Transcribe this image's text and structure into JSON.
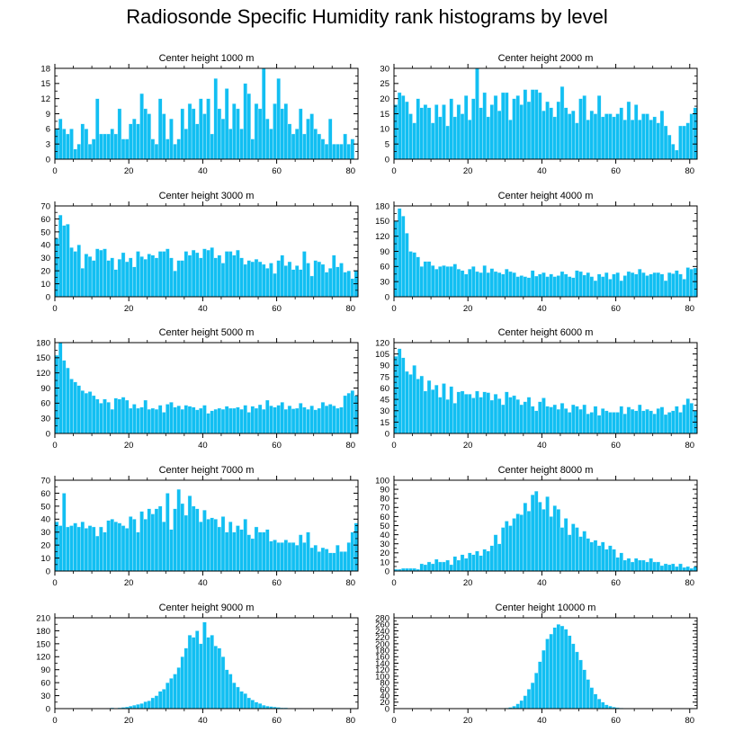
{
  "title": "Radiosonde Specific Humidity rank histograms by level",
  "colors": {
    "bar": "#12bff2",
    "bar_edge": "#e6f8ff",
    "axis": "#000000"
  },
  "chart_data": [
    {
      "type": "bar",
      "title": "Center height 1000 m",
      "xlim": [
        0,
        82
      ],
      "xticks": [
        0,
        20,
        40,
        60,
        80
      ],
      "ylim": [
        0,
        18
      ],
      "yticks": [
        0,
        3,
        6,
        9,
        12,
        15,
        18
      ],
      "xlabel": "",
      "ylabel": "",
      "values": [
        6,
        8,
        6,
        5,
        6,
        2,
        3,
        7,
        6,
        3,
        4,
        12,
        5,
        5,
        5,
        6,
        5,
        10,
        4,
        4,
        7,
        8,
        7,
        13,
        10,
        9,
        4,
        3,
        12,
        9,
        4,
        8,
        3,
        4,
        10,
        6,
        11,
        10,
        7,
        12,
        9,
        12,
        5,
        16,
        10,
        8,
        14,
        6,
        11,
        10,
        6,
        15,
        13,
        4,
        11,
        10,
        18,
        8,
        6,
        11,
        16,
        10,
        11,
        7,
        5,
        6,
        10,
        5,
        8,
        9,
        6,
        5,
        4,
        3,
        8,
        3,
        3,
        3,
        5,
        3,
        4
      ]
    },
    {
      "type": "bar",
      "title": "Center height 2000 m",
      "xlim": [
        0,
        82
      ],
      "xticks": [
        0,
        20,
        40,
        60,
        80
      ],
      "ylim": [
        0,
        30
      ],
      "yticks": [
        0,
        5,
        10,
        15,
        20,
        25,
        30
      ],
      "xlabel": "",
      "ylabel": "",
      "values": [
        18,
        22,
        21,
        19,
        15,
        12,
        20,
        17,
        18,
        17,
        12,
        18,
        14,
        18,
        11,
        20,
        14,
        18,
        15,
        21,
        13,
        20,
        30,
        17,
        22,
        14,
        18,
        21,
        16,
        22,
        22,
        13,
        20,
        21,
        18,
        23,
        19,
        23,
        23,
        22,
        16,
        19,
        17,
        14,
        19,
        24,
        17,
        15,
        16,
        12,
        20,
        21,
        13,
        16,
        15,
        21,
        14,
        15,
        15,
        14,
        15,
        17,
        13,
        19,
        13,
        18,
        13,
        15,
        15,
        13,
        14,
        12,
        16,
        11,
        8,
        5,
        3,
        11,
        11,
        12,
        15,
        17,
        17
      ]
    },
    {
      "type": "bar",
      "title": "Center height 3000 m",
      "xlim": [
        0,
        82
      ],
      "xticks": [
        0,
        20,
        40,
        60,
        80
      ],
      "ylim": [
        0,
        70
      ],
      "yticks": [
        0,
        10,
        20,
        30,
        40,
        50,
        60,
        70
      ],
      "xlabel": "",
      "ylabel": "",
      "values": [
        45,
        63,
        55,
        56,
        38,
        35,
        40,
        22,
        33,
        31,
        28,
        37,
        36,
        37,
        28,
        30,
        21,
        29,
        34,
        27,
        30,
        23,
        35,
        31,
        29,
        33,
        32,
        30,
        35,
        35,
        37,
        30,
        20,
        28,
        28,
        35,
        32,
        36,
        34,
        30,
        37,
        36,
        38,
        30,
        32,
        26,
        35,
        35,
        32,
        36,
        30,
        25,
        28,
        27,
        29,
        27,
        25,
        22,
        26,
        18,
        28,
        32,
        24,
        27,
        21,
        24,
        21,
        35,
        26,
        16,
        28,
        27,
        25,
        19,
        22,
        32,
        23,
        26,
        19,
        20,
        14,
        20
      ]
    },
    {
      "type": "bar",
      "title": "Center height 4000 m",
      "xlim": [
        0,
        82
      ],
      "xticks": [
        0,
        20,
        40,
        60,
        80
      ],
      "ylim": [
        0,
        180
      ],
      "yticks": [
        0,
        30,
        60,
        90,
        120,
        150,
        180
      ],
      "xlabel": "",
      "ylabel": "",
      "values": [
        150,
        175,
        160,
        126,
        90,
        88,
        79,
        60,
        70,
        70,
        62,
        55,
        60,
        62,
        60,
        60,
        65,
        55,
        52,
        45,
        55,
        60,
        50,
        48,
        62,
        48,
        56,
        50,
        48,
        45,
        55,
        50,
        48,
        40,
        42,
        40,
        38,
        52,
        41,
        45,
        48,
        40,
        45,
        40,
        42,
        50,
        45,
        40,
        38,
        52,
        50,
        43,
        48,
        40,
        32,
        45,
        40,
        48,
        35,
        45,
        48,
        32,
        42,
        50,
        48,
        45,
        55,
        48,
        42,
        45,
        48,
        48,
        45,
        32,
        48,
        46,
        52,
        45,
        35,
        58,
        55,
        57
      ]
    },
    {
      "type": "bar",
      "title": "Center height 5000 m",
      "xlim": [
        0,
        82
      ],
      "xticks": [
        0,
        20,
        40,
        60,
        80
      ],
      "ylim": [
        0,
        180
      ],
      "yticks": [
        0,
        30,
        60,
        90,
        120,
        150,
        180
      ],
      "xlabel": "",
      "ylabel": "",
      "values": [
        155,
        180,
        145,
        130,
        108,
        102,
        95,
        85,
        80,
        83,
        75,
        68,
        60,
        68,
        62,
        48,
        70,
        68,
        72,
        66,
        50,
        58,
        50,
        52,
        66,
        48,
        50,
        48,
        56,
        42,
        58,
        62,
        52,
        55,
        48,
        56,
        54,
        52,
        47,
        50,
        56,
        40,
        45,
        48,
        50,
        48,
        54,
        50,
        50,
        52,
        48,
        56,
        42,
        54,
        50,
        57,
        48,
        66,
        55,
        52,
        56,
        62,
        48,
        55,
        49,
        50,
        60,
        52,
        48,
        55,
        47,
        50,
        62,
        55,
        58,
        55,
        50,
        52,
        75,
        80,
        85,
        75
      ]
    },
    {
      "type": "bar",
      "title": "Center height 6000 m",
      "xlim": [
        0,
        82
      ],
      "xticks": [
        0,
        20,
        40,
        60,
        80
      ],
      "ylim": [
        0,
        120
      ],
      "yticks": [
        0,
        15,
        30,
        45,
        60,
        75,
        90,
        105,
        120
      ],
      "xlabel": "",
      "ylabel": "",
      "values": [
        102,
        112,
        100,
        82,
        78,
        90,
        72,
        76,
        56,
        70,
        58,
        64,
        48,
        66,
        45,
        62,
        40,
        55,
        56,
        52,
        52,
        47,
        56,
        48,
        55,
        54,
        44,
        52,
        46,
        38,
        55,
        48,
        50,
        45,
        38,
        42,
        48,
        36,
        30,
        42,
        47,
        36,
        35,
        38,
        32,
        40,
        33,
        28,
        38,
        36,
        32,
        38,
        26,
        28,
        36,
        24,
        33,
        30,
        28,
        28,
        28,
        36,
        26,
        35,
        32,
        30,
        38,
        30,
        32,
        30,
        26,
        33,
        35,
        25,
        28,
        30,
        36,
        28,
        38,
        46,
        40,
        30
      ]
    },
    {
      "type": "bar",
      "title": "Center height 7000 m",
      "xlim": [
        0,
        82
      ],
      "xticks": [
        0,
        20,
        40,
        60,
        80
      ],
      "ylim": [
        0,
        70
      ],
      "yticks": [
        0,
        10,
        20,
        30,
        40,
        50,
        60,
        70
      ],
      "xlabel": "",
      "ylabel": "",
      "values": [
        38,
        35,
        60,
        34,
        35,
        37,
        34,
        38,
        33,
        35,
        34,
        27,
        34,
        30,
        39,
        40,
        38,
        37,
        35,
        33,
        42,
        40,
        30,
        46,
        40,
        48,
        44,
        48,
        50,
        38,
        60,
        32,
        48,
        63,
        52,
        43,
        58,
        50,
        48,
        38,
        47,
        40,
        41,
        40,
        34,
        42,
        30,
        38,
        30,
        35,
        32,
        40,
        28,
        25,
        34,
        30,
        30,
        32,
        23,
        24,
        22,
        22,
        24,
        22,
        22,
        20,
        28,
        22,
        30,
        18,
        20,
        15,
        18,
        17,
        14,
        14,
        20,
        15,
        15,
        22,
        30,
        37
      ]
    },
    {
      "type": "bar",
      "title": "Center height 8000 m",
      "xlim": [
        0,
        82
      ],
      "xticks": [
        0,
        20,
        40,
        60,
        80
      ],
      "ylim": [
        0,
        100
      ],
      "yticks": [
        0,
        10,
        20,
        30,
        40,
        50,
        60,
        70,
        80,
        90,
        100
      ],
      "xlabel": "",
      "ylabel": "",
      "values": [
        2,
        2,
        3,
        3,
        3,
        3,
        2,
        8,
        7,
        10,
        8,
        13,
        10,
        10,
        12,
        7,
        16,
        12,
        18,
        14,
        20,
        18,
        22,
        17,
        24,
        22,
        28,
        40,
        30,
        48,
        55,
        50,
        58,
        63,
        62,
        75,
        66,
        84,
        88,
        76,
        68,
        82,
        60,
        72,
        68,
        48,
        58,
        40,
        52,
        48,
        38,
        44,
        36,
        32,
        34,
        28,
        32,
        24,
        28,
        24,
        15,
        20,
        12,
        14,
        10,
        14,
        12,
        12,
        10,
        14,
        10,
        10,
        6,
        8,
        7,
        8,
        5,
        8,
        4,
        5,
        3,
        5,
        4
      ]
    },
    {
      "type": "bar",
      "title": "Center height 9000 m",
      "xlim": [
        0,
        82
      ],
      "xticks": [
        0,
        20,
        40,
        60,
        80
      ],
      "ylim": [
        0,
        210
      ],
      "yticks": [
        0,
        30,
        60,
        90,
        120,
        150,
        180,
        210
      ],
      "xlabel": "",
      "ylabel": "",
      "values": [
        0,
        0,
        0,
        0,
        0,
        0,
        0,
        0,
        0,
        0,
        0,
        0,
        0,
        0,
        1,
        2,
        1,
        2,
        3,
        4,
        6,
        8,
        10,
        12,
        16,
        18,
        25,
        30,
        40,
        45,
        60,
        70,
        80,
        95,
        120,
        140,
        170,
        165,
        180,
        150,
        200,
        165,
        170,
        145,
        140,
        120,
        90,
        80,
        60,
        50,
        40,
        35,
        25,
        20,
        15,
        12,
        8,
        6,
        5,
        4,
        3,
        2,
        2,
        1,
        1,
        1,
        1,
        0,
        0,
        0,
        0,
        0,
        0,
        0,
        0,
        0,
        0,
        0,
        0,
        0,
        0,
        0,
        0
      ]
    },
    {
      "type": "bar",
      "title": "Center height 10000 m",
      "xlim": [
        0,
        82
      ],
      "xticks": [
        0,
        20,
        40,
        60,
        80
      ],
      "ylim": [
        0,
        280
      ],
      "yticks": [
        0,
        20,
        40,
        60,
        80,
        100,
        120,
        140,
        160,
        180,
        200,
        220,
        240,
        260,
        280
      ],
      "xlabel": "",
      "ylabel": "",
      "values": [
        0,
        0,
        0,
        0,
        0,
        0,
        0,
        0,
        0,
        0,
        0,
        0,
        0,
        0,
        0,
        0,
        0,
        0,
        0,
        0,
        0,
        0,
        0,
        0,
        0,
        0,
        0,
        0,
        0,
        1,
        2,
        4,
        8,
        15,
        25,
        40,
        60,
        80,
        110,
        145,
        180,
        215,
        230,
        250,
        260,
        255,
        245,
        225,
        200,
        175,
        150,
        120,
        90,
        65,
        45,
        30,
        20,
        12,
        8,
        5,
        3,
        2,
        1,
        1,
        0,
        0,
        0,
        0,
        0,
        0,
        0,
        0,
        0,
        0,
        0,
        0,
        0,
        0,
        0,
        0,
        0,
        0,
        0
      ]
    }
  ]
}
